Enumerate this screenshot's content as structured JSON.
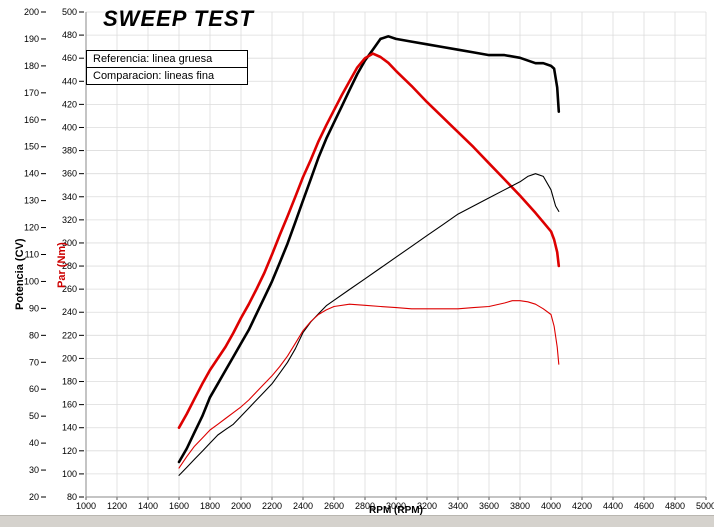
{
  "chart_data": {
    "type": "line",
    "title": "SWEEP TEST",
    "legend": [
      "Referencia: linea gruesa",
      "Comparacion: lineas fina"
    ],
    "x_axis": {
      "label": "RPM (RPM)",
      "min": 1000,
      "max": 5000,
      "tick_step": 200
    },
    "y_axis_power": {
      "label": "Potencia (CV)",
      "min": 20,
      "max": 200,
      "tick_step": 10,
      "color": "#000000"
    },
    "y_axis_torque": {
      "label": "Par (Nm)",
      "min": 80,
      "max": 500,
      "tick_step": 20,
      "color": "#cc0000"
    },
    "grid": true,
    "legend_position": "top-left",
    "series": [
      {
        "name": "potencia-referencia",
        "axis": "power",
        "color": "#000000",
        "width": 2.6,
        "points": [
          [
            1600,
            33
          ],
          [
            1650,
            38
          ],
          [
            1700,
            44
          ],
          [
            1750,
            50
          ],
          [
            1800,
            57
          ],
          [
            1850,
            62
          ],
          [
            1900,
            67
          ],
          [
            1950,
            72
          ],
          [
            2000,
            77
          ],
          [
            2050,
            82
          ],
          [
            2100,
            88
          ],
          [
            2150,
            94
          ],
          [
            2200,
            100
          ],
          [
            2250,
            107
          ],
          [
            2300,
            114
          ],
          [
            2350,
            122
          ],
          [
            2400,
            130
          ],
          [
            2450,
            138
          ],
          [
            2500,
            146
          ],
          [
            2550,
            153
          ],
          [
            2600,
            159
          ],
          [
            2650,
            165
          ],
          [
            2700,
            171
          ],
          [
            2750,
            177
          ],
          [
            2800,
            182
          ],
          [
            2850,
            186
          ],
          [
            2900,
            190
          ],
          [
            2950,
            191
          ],
          [
            3000,
            190
          ],
          [
            3100,
            189
          ],
          [
            3200,
            188
          ],
          [
            3300,
            187
          ],
          [
            3400,
            186
          ],
          [
            3500,
            185
          ],
          [
            3600,
            184
          ],
          [
            3700,
            184
          ],
          [
            3800,
            183
          ],
          [
            3900,
            181
          ],
          [
            3950,
            181
          ],
          [
            4000,
            180
          ],
          [
            4020,
            179
          ],
          [
            4040,
            172
          ],
          [
            4050,
            163
          ]
        ]
      },
      {
        "name": "par-referencia",
        "axis": "torque",
        "color": "#dd0000",
        "width": 2.6,
        "points": [
          [
            1600,
            140
          ],
          [
            1650,
            152
          ],
          [
            1700,
            165
          ],
          [
            1750,
            178
          ],
          [
            1800,
            190
          ],
          [
            1850,
            200
          ],
          [
            1900,
            210
          ],
          [
            1950,
            222
          ],
          [
            2000,
            235
          ],
          [
            2050,
            247
          ],
          [
            2100,
            260
          ],
          [
            2150,
            274
          ],
          [
            2200,
            290
          ],
          [
            2250,
            307
          ],
          [
            2300,
            323
          ],
          [
            2350,
            340
          ],
          [
            2400,
            357
          ],
          [
            2450,
            372
          ],
          [
            2500,
            388
          ],
          [
            2550,
            402
          ],
          [
            2600,
            415
          ],
          [
            2650,
            428
          ],
          [
            2700,
            440
          ],
          [
            2750,
            452
          ],
          [
            2800,
            460
          ],
          [
            2850,
            464
          ],
          [
            2900,
            461
          ],
          [
            2950,
            456
          ],
          [
            3000,
            449
          ],
          [
            3100,
            436
          ],
          [
            3200,
            422
          ],
          [
            3300,
            409
          ],
          [
            3400,
            396
          ],
          [
            3500,
            383
          ],
          [
            3600,
            369
          ],
          [
            3700,
            355
          ],
          [
            3800,
            341
          ],
          [
            3900,
            326
          ],
          [
            3950,
            318
          ],
          [
            4000,
            310
          ],
          [
            4020,
            303
          ],
          [
            4040,
            292
          ],
          [
            4050,
            280
          ]
        ]
      },
      {
        "name": "potencia-comparacion",
        "axis": "power",
        "color": "#000000",
        "width": 1.1,
        "points": [
          [
            1600,
            28
          ],
          [
            1650,
            31
          ],
          [
            1700,
            34
          ],
          [
            1750,
            37
          ],
          [
            1800,
            40
          ],
          [
            1850,
            43
          ],
          [
            1900,
            45
          ],
          [
            1950,
            47
          ],
          [
            2000,
            50
          ],
          [
            2050,
            53
          ],
          [
            2100,
            56
          ],
          [
            2150,
            59
          ],
          [
            2200,
            62
          ],
          [
            2250,
            66
          ],
          [
            2300,
            70
          ],
          [
            2350,
            75
          ],
          [
            2400,
            81
          ],
          [
            2450,
            85
          ],
          [
            2500,
            88
          ],
          [
            2550,
            91
          ],
          [
            2600,
            93
          ],
          [
            2700,
            97
          ],
          [
            2800,
            101
          ],
          [
            2900,
            105
          ],
          [
            3000,
            109
          ],
          [
            3100,
            113
          ],
          [
            3200,
            117
          ],
          [
            3300,
            121
          ],
          [
            3400,
            125
          ],
          [
            3500,
            128
          ],
          [
            3600,
            131
          ],
          [
            3700,
            134
          ],
          [
            3800,
            137
          ],
          [
            3850,
            139
          ],
          [
            3900,
            140
          ],
          [
            3950,
            139
          ],
          [
            4000,
            134
          ],
          [
            4030,
            128
          ],
          [
            4050,
            126
          ]
        ]
      },
      {
        "name": "par-comparacion",
        "axis": "torque",
        "color": "#dd0000",
        "width": 1.1,
        "points": [
          [
            1600,
            105
          ],
          [
            1650,
            115
          ],
          [
            1700,
            124
          ],
          [
            1750,
            131
          ],
          [
            1800,
            138
          ],
          [
            1850,
            143
          ],
          [
            1900,
            148
          ],
          [
            1950,
            153
          ],
          [
            2000,
            158
          ],
          [
            2050,
            164
          ],
          [
            2100,
            171
          ],
          [
            2150,
            178
          ],
          [
            2200,
            185
          ],
          [
            2250,
            193
          ],
          [
            2300,
            202
          ],
          [
            2350,
            213
          ],
          [
            2400,
            224
          ],
          [
            2450,
            232
          ],
          [
            2500,
            238
          ],
          [
            2550,
            242
          ],
          [
            2600,
            245
          ],
          [
            2700,
            247
          ],
          [
            2800,
            246
          ],
          [
            2900,
            245
          ],
          [
            3000,
            244
          ],
          [
            3100,
            243
          ],
          [
            3200,
            243
          ],
          [
            3300,
            243
          ],
          [
            3400,
            243
          ],
          [
            3500,
            244
          ],
          [
            3600,
            245
          ],
          [
            3700,
            248
          ],
          [
            3750,
            250
          ],
          [
            3800,
            250
          ],
          [
            3850,
            249
          ],
          [
            3900,
            247
          ],
          [
            3950,
            243
          ],
          [
            4000,
            238
          ],
          [
            4020,
            228
          ],
          [
            4040,
            210
          ],
          [
            4050,
            195
          ]
        ]
      }
    ]
  }
}
